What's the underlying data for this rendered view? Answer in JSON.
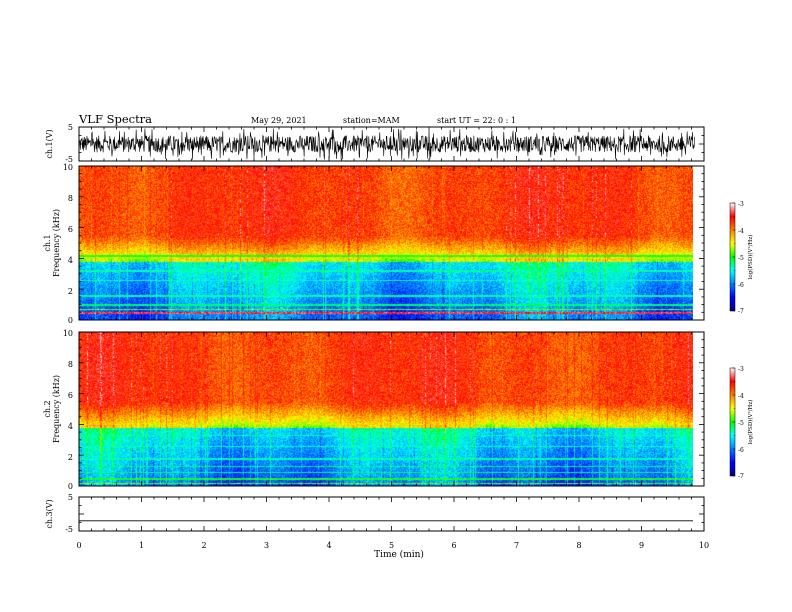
{
  "header": {
    "title": "VLF Spectra",
    "date": "May 29, 2021",
    "station": "station=MAM",
    "start": "start UT =  22: 0 : 1"
  },
  "chart_data": [
    {
      "type": "line",
      "name": "channel-1-waveform",
      "ylabel": "ch.1(V)",
      "ylim": [
        -5,
        5
      ],
      "yticks": [
        "5",
        "-5"
      ],
      "xlim": [
        0,
        10
      ],
      "color": "#000000",
      "description_values": {
        "baseline": 0,
        "noise_amplitude": 2.5
      }
    },
    {
      "type": "heatmap",
      "name": "channel-1-spectrogram",
      "ylabel_line1": "ch.1",
      "ylabel_line2": "Frequency (kHz)",
      "yticks": [
        "0",
        "2",
        "4",
        "6",
        "8",
        "10"
      ],
      "ylim": [
        0,
        10
      ],
      "xlim": [
        0,
        9.85
      ],
      "colorbar": {
        "label": "log(PSD)(V²/Hz)",
        "ticks": [
          "-3",
          "-4",
          "-5",
          "-6",
          "-7"
        ],
        "range": [
          -7,
          -3
        ]
      }
    },
    {
      "type": "heatmap",
      "name": "channel-2-spectrogram",
      "ylabel_line1": "ch.2",
      "ylabel_line2": "Frequency (kHz)",
      "yticks": [
        "0",
        "2",
        "4",
        "6",
        "8",
        "10"
      ],
      "ylim": [
        0,
        10
      ],
      "xlim": [
        0,
        9.85
      ],
      "colorbar": {
        "label": "log(PSD)(V²/Hz)",
        "ticks": [
          "-3",
          "-4",
          "-5",
          "-6",
          "-7"
        ],
        "range": [
          -7,
          -3
        ]
      }
    },
    {
      "type": "line",
      "name": "channel-3-waveform",
      "ylabel": "ch.3(V)",
      "ylim": [
        -5,
        5
      ],
      "yticks": [
        "5",
        "-5"
      ],
      "xlim": [
        0,
        10
      ],
      "values_constant": -2,
      "color": "#000000"
    }
  ],
  "xaxis": {
    "label": "Time (min)",
    "ticks": [
      "0",
      "1",
      "2",
      "3",
      "4",
      "5",
      "6",
      "7",
      "8",
      "9",
      "10"
    ]
  }
}
